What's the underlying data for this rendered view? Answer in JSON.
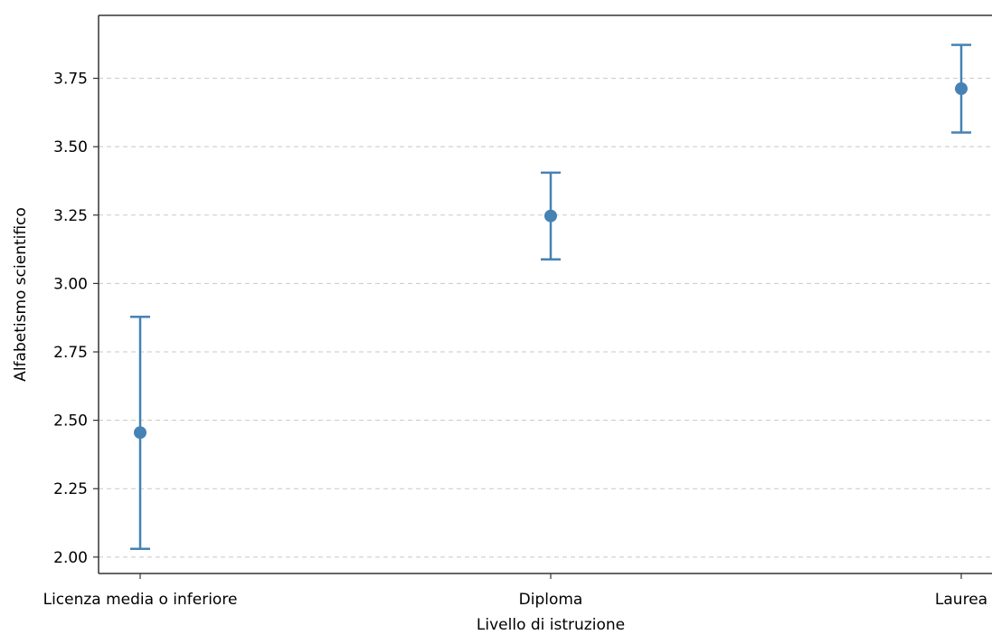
{
  "chart_data": {
    "type": "errorbar",
    "title": "",
    "xlabel": "Livello di istruzione",
    "ylabel": "Alfabetismo scientifico",
    "categories": [
      "Licenza media o inferiore",
      "Diploma",
      "Laurea"
    ],
    "values": [
      2.455,
      3.247,
      3.712
    ],
    "lower": [
      2.03,
      3.088,
      3.552
    ],
    "upper": [
      2.878,
      3.405,
      3.872
    ],
    "ylim": [
      1.94,
      3.98
    ],
    "yticks": [
      2.0,
      2.25,
      2.5,
      2.75,
      3.0,
      3.25,
      3.5,
      3.75
    ],
    "ytick_labels": [
      "2.00",
      "2.25",
      "2.50",
      "2.75",
      "3.00",
      "3.25",
      "3.50",
      "3.75"
    ],
    "grid": "y dashed",
    "color": "#4682B4",
    "gridColor": "#c8c8c8"
  }
}
